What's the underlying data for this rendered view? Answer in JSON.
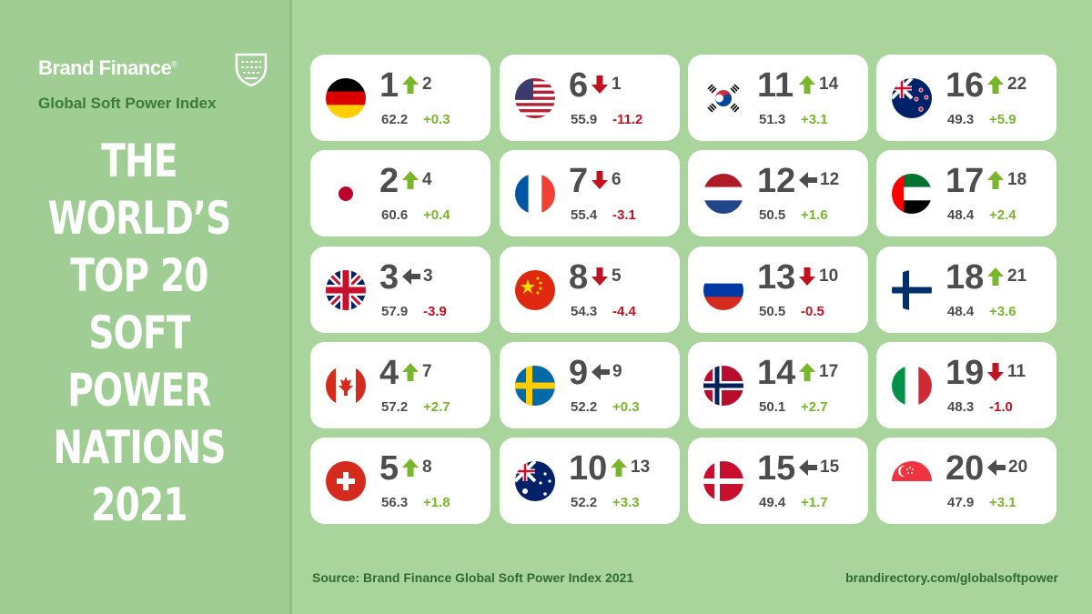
{
  "brand": {
    "name": "Brand Finance",
    "registered": "®",
    "index_name": "Global Soft Power Index"
  },
  "headline": [
    "THE",
    "WORLD’S",
    "TOP 20",
    "SOFT",
    "POWER",
    "NATIONS",
    "2021"
  ],
  "colors": {
    "background": "#a9d49c",
    "sidebar": "#9fcd93",
    "up": "#7ab62c",
    "down": "#c1121f",
    "same": "#4d4d4d",
    "text_dark": "#4d4d4d",
    "footer_text": "#2f6b2f"
  },
  "cards": [
    {
      "rank": "1",
      "prev": "2",
      "trend": "up",
      "score": "62.2",
      "change": "+0.3",
      "flag": "germany"
    },
    {
      "rank": "2",
      "prev": "4",
      "trend": "up",
      "score": "60.6",
      "change": "+0.4",
      "flag": "japan"
    },
    {
      "rank": "3",
      "prev": "3",
      "trend": "same",
      "score": "57.9",
      "change": "-3.9",
      "flag": "united-kingdom"
    },
    {
      "rank": "4",
      "prev": "7",
      "trend": "up",
      "score": "57.2",
      "change": "+2.7",
      "flag": "canada"
    },
    {
      "rank": "5",
      "prev": "8",
      "trend": "up",
      "score": "56.3",
      "change": "+1.8",
      "flag": "switzerland"
    },
    {
      "rank": "6",
      "prev": "1",
      "trend": "down",
      "score": "55.9",
      "change": "-11.2",
      "flag": "united-states"
    },
    {
      "rank": "7",
      "prev": "6",
      "trend": "down",
      "score": "55.4",
      "change": "-3.1",
      "flag": "france"
    },
    {
      "rank": "8",
      "prev": "5",
      "trend": "down",
      "score": "54.3",
      "change": "-4.4",
      "flag": "china"
    },
    {
      "rank": "9",
      "prev": "9",
      "trend": "same",
      "score": "52.2",
      "change": "+0.3",
      "flag": "sweden"
    },
    {
      "rank": "10",
      "prev": "13",
      "trend": "up",
      "score": "52.2",
      "change": "+3.3",
      "flag": "australia"
    },
    {
      "rank": "11",
      "prev": "14",
      "trend": "up",
      "score": "51.3",
      "change": "+3.1",
      "flag": "south-korea"
    },
    {
      "rank": "12",
      "prev": "12",
      "trend": "same",
      "score": "50.5",
      "change": "+1.6",
      "flag": "netherlands"
    },
    {
      "rank": "13",
      "prev": "10",
      "trend": "down",
      "score": "50.5",
      "change": "-0.5",
      "flag": "russia"
    },
    {
      "rank": "14",
      "prev": "17",
      "trend": "up",
      "score": "50.1",
      "change": "+2.7",
      "flag": "norway"
    },
    {
      "rank": "15",
      "prev": "15",
      "trend": "same",
      "score": "49.4",
      "change": "+1.7",
      "flag": "denmark"
    },
    {
      "rank": "16",
      "prev": "22",
      "trend": "up",
      "score": "49.3",
      "change": "+5.9",
      "flag": "new-zealand"
    },
    {
      "rank": "17",
      "prev": "18",
      "trend": "up",
      "score": "48.4",
      "change": "+2.4",
      "flag": "uae"
    },
    {
      "rank": "18",
      "prev": "21",
      "trend": "up",
      "score": "48.4",
      "change": "+3.6",
      "flag": "finland"
    },
    {
      "rank": "19",
      "prev": "11",
      "trend": "down",
      "score": "48.3",
      "change": "-1.0",
      "flag": "italy"
    },
    {
      "rank": "20",
      "prev": "20",
      "trend": "same",
      "score": "47.9",
      "change": "+3.1",
      "flag": "singapore"
    }
  ],
  "footer": {
    "source": "Source: Brand Finance Global Soft Power Index 2021",
    "url": "brandirectory.com/globalsoftpower"
  }
}
